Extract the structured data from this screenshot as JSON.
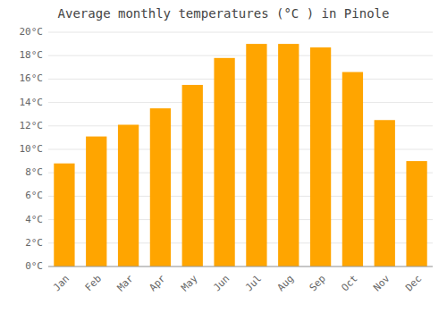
{
  "chart_data": {
    "type": "bar",
    "title": "Average monthly temperatures (°C ) in Pinole",
    "categories": [
      "Jan",
      "Feb",
      "Mar",
      "Apr",
      "May",
      "Jun",
      "Jul",
      "Aug",
      "Sep",
      "Oct",
      "Nov",
      "Dec"
    ],
    "values": [
      8.8,
      11.1,
      12.1,
      13.5,
      15.5,
      17.8,
      19.0,
      19.0,
      18.7,
      16.6,
      12.5,
      9.0
    ],
    "color": "#FFA500",
    "ylim": [
      0,
      20
    ],
    "yticks": [
      {
        "value": 0,
        "label": "0°C"
      },
      {
        "value": 2,
        "label": "2°C"
      },
      {
        "value": 4,
        "label": "4°C"
      },
      {
        "value": 6,
        "label": "6°C"
      },
      {
        "value": 8,
        "label": "8°C"
      },
      {
        "value": 10,
        "label": "10°C"
      },
      {
        "value": 12,
        "label": "12°C"
      },
      {
        "value": 14,
        "label": "14°C"
      },
      {
        "value": 16,
        "label": "16°C"
      },
      {
        "value": 18,
        "label": "18°C"
      },
      {
        "value": 20,
        "label": "20°C"
      }
    ],
    "grid": true
  }
}
